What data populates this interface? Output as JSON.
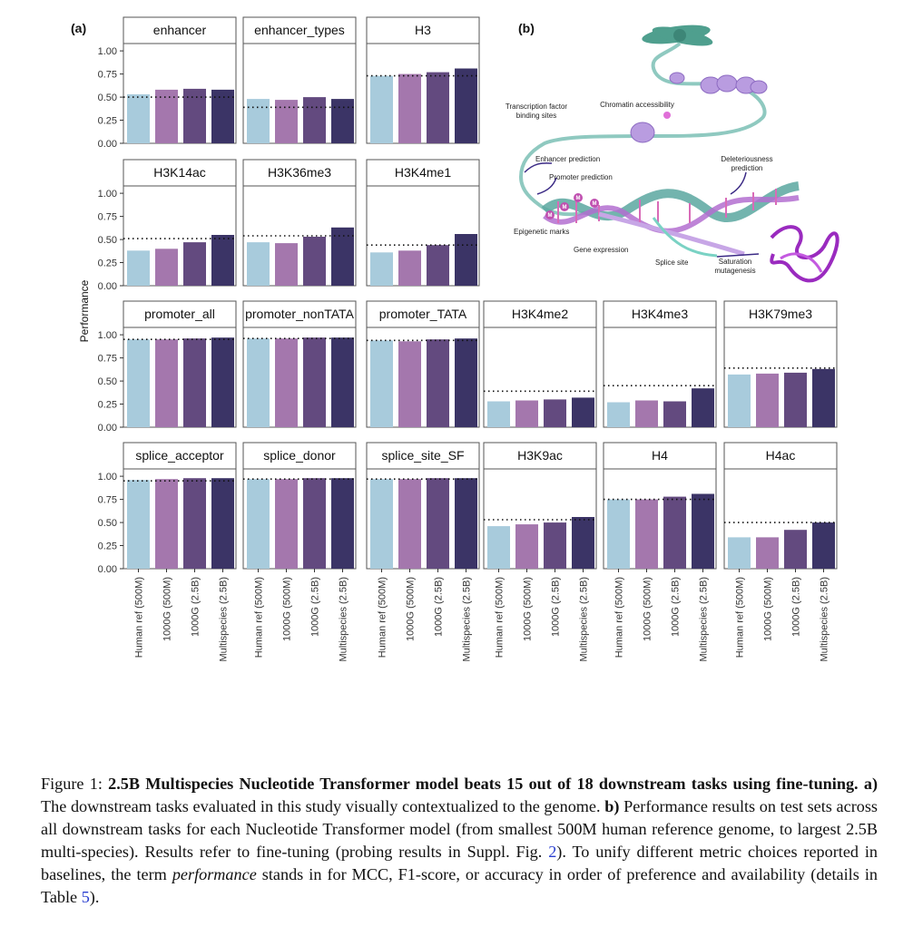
{
  "panel_labels": {
    "a": "(a)",
    "b": "(b)"
  },
  "colors": {
    "human_ref_500M": "#a8cbdc",
    "g1000_500M": "#a477ad",
    "g1000_2_5B": "#634a7f",
    "multispecies_2_5B": "#3b3466",
    "strip_bg": "#ffffff",
    "panel_border": "#555555"
  },
  "chart_data": {
    "type": "bar",
    "ylabel": "Performance",
    "ylim": [
      0,
      1.08
    ],
    "yticks": [
      0.0,
      0.25,
      0.5,
      0.75,
      1.0
    ],
    "ytick_labels": [
      "0.00",
      "0.25",
      "0.50",
      "0.75",
      "1.00"
    ],
    "categories": [
      "Human ref (500M)",
      "1000G (500M)",
      "1000G (2.5B)",
      "Multispecies (2.5B)"
    ],
    "baseline_style": "dotted",
    "panels": [
      {
        "title": "enhancer",
        "values": [
          0.53,
          0.58,
          0.59,
          0.58
        ],
        "baseline": 0.5
      },
      {
        "title": "enhancer_types",
        "values": [
          0.48,
          0.47,
          0.5,
          0.48
        ],
        "baseline": 0.39
      },
      {
        "title": "H3",
        "values": [
          0.73,
          0.75,
          0.77,
          0.81
        ],
        "baseline": 0.73
      },
      {
        "title": "H3K14ac",
        "values": [
          0.38,
          0.4,
          0.47,
          0.55
        ],
        "baseline": 0.51
      },
      {
        "title": "H3K36me3",
        "values": [
          0.47,
          0.46,
          0.53,
          0.63
        ],
        "baseline": 0.54
      },
      {
        "title": "H3K4me1",
        "values": [
          0.36,
          0.38,
          0.44,
          0.56
        ],
        "baseline": 0.44
      },
      {
        "title": "promoter_all",
        "values": [
          0.95,
          0.95,
          0.96,
          0.97
        ],
        "baseline": 0.95
      },
      {
        "title": "promoter_nonTATA",
        "values": [
          0.96,
          0.96,
          0.97,
          0.97
        ],
        "baseline": 0.96
      },
      {
        "title": "promoter_TATA",
        "values": [
          0.94,
          0.93,
          0.95,
          0.96
        ],
        "baseline": 0.94
      },
      {
        "title": "H3K4me2",
        "values": [
          0.28,
          0.29,
          0.3,
          0.32
        ],
        "baseline": 0.39
      },
      {
        "title": "H3K4me3",
        "values": [
          0.27,
          0.29,
          0.28,
          0.42
        ],
        "baseline": 0.45
      },
      {
        "title": "H3K79me3",
        "values": [
          0.57,
          0.58,
          0.59,
          0.63
        ],
        "baseline": 0.64
      },
      {
        "title": "splice_acceptor",
        "values": [
          0.96,
          0.97,
          0.98,
          0.98
        ],
        "baseline": 0.95
      },
      {
        "title": "splice_donor",
        "values": [
          0.97,
          0.97,
          0.98,
          0.98
        ],
        "baseline": 0.97
      },
      {
        "title": "splice_site_SF",
        "values": [
          0.97,
          0.97,
          0.98,
          0.98
        ],
        "baseline": 0.97
      },
      {
        "title": "H3K9ac",
        "values": [
          0.46,
          0.48,
          0.5,
          0.56
        ],
        "baseline": 0.53
      },
      {
        "title": "H4",
        "values": [
          0.75,
          0.75,
          0.78,
          0.81
        ],
        "baseline": 0.75
      },
      {
        "title": "H4ac",
        "values": [
          0.34,
          0.34,
          0.42,
          0.5
        ],
        "baseline": 0.5
      }
    ]
  },
  "diagram_labels": {
    "tfbs": "Transcription factor\nbinding sites",
    "chromatin": "Chromatin accessibility",
    "enhancer_pred": "Enhancer prediction",
    "promoter_pred": "Promoter prediction",
    "epigenetic": "Epigenetic marks",
    "gene_expr": "Gene expression",
    "splice": "Splice site",
    "deleterious": "Deleteriousness\nprediction",
    "saturation": "Saturation\nmutagenesis",
    "mark": "M"
  },
  "caption": {
    "prefix": "Figure 1: ",
    "bold_title": "2.5B Multispecies Nucleotide Transformer model beats 15 out of 18 downstream tasks using fine-tuning.",
    "a_label": "a)",
    "a_text": " The downstream tasks evaluated in this study visually contextualized to the genome. ",
    "b_label": "b)",
    "b_text": " Performance results on test sets across all downstream tasks for each Nucleotide Transformer model (from smallest 500M human reference genome, to largest 2.5B multi-species). Results refer to fine-tuning (probing results in Suppl. Fig. ",
    "fig_ref": "2",
    "mid_text": "). To unify different metric choices reported in baselines, the term ",
    "italic_term": "performance",
    "end_text": " stands in for MCC, F1-score, or accuracy in order of preference and availability (details in Table ",
    "table_ref": "5",
    "close_text": ")."
  }
}
